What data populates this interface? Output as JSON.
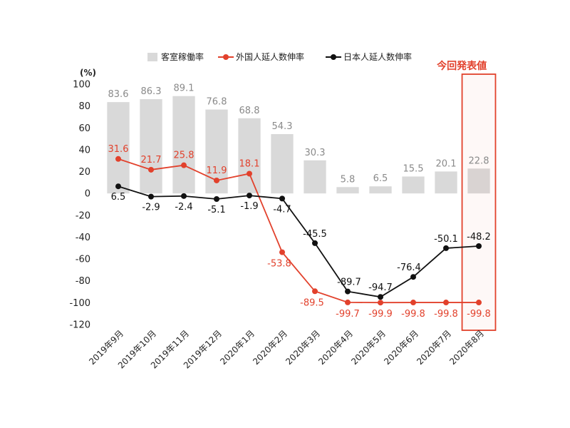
{
  "chart_data": {
    "type": "bar",
    "unit_label": "(%)",
    "categories": [
      "2019年9月",
      "2019年10月",
      "2019年11月",
      "2019年12月",
      "2020年1月",
      "2020年2月",
      "2020年3月",
      "2020年4月",
      "2020年5月",
      "2020年6月",
      "2020年7月",
      "2020年8月"
    ],
    "ylim": [
      -120,
      100
    ],
    "yticks": [
      100,
      80,
      60,
      40,
      20,
      0,
      -20,
      -40,
      -60,
      -80,
      -100,
      -120
    ],
    "grid": false,
    "legend_position": "top",
    "series": [
      {
        "name": "客室稼働率",
        "kind": "bar",
        "color": "#d9d9d9",
        "label_color": "#8a8a8a",
        "values": [
          83.6,
          86.3,
          89.1,
          76.8,
          68.8,
          54.3,
          30.3,
          5.8,
          6.5,
          15.5,
          20.1,
          22.8
        ]
      },
      {
        "name": "外国人延人数伸率",
        "kind": "line",
        "color": "#e2412c",
        "label_color": "#e2412c",
        "values": [
          31.6,
          21.7,
          25.8,
          11.9,
          18.1,
          -53.8,
          -89.5,
          -99.7,
          -99.9,
          -99.8,
          -99.8,
          -99.8
        ]
      },
      {
        "name": "日本人延人数伸率",
        "kind": "line",
        "color": "#111111",
        "label_color": "#111111",
        "values": [
          6.5,
          -2.9,
          -2.4,
          -5.1,
          -1.9,
          -4.7,
          -45.5,
          -89.7,
          -94.7,
          -76.4,
          -50.1,
          -48.2
        ]
      }
    ],
    "highlight": {
      "label": "今回発表値",
      "category_index": 11,
      "color": "#e2412c"
    }
  }
}
